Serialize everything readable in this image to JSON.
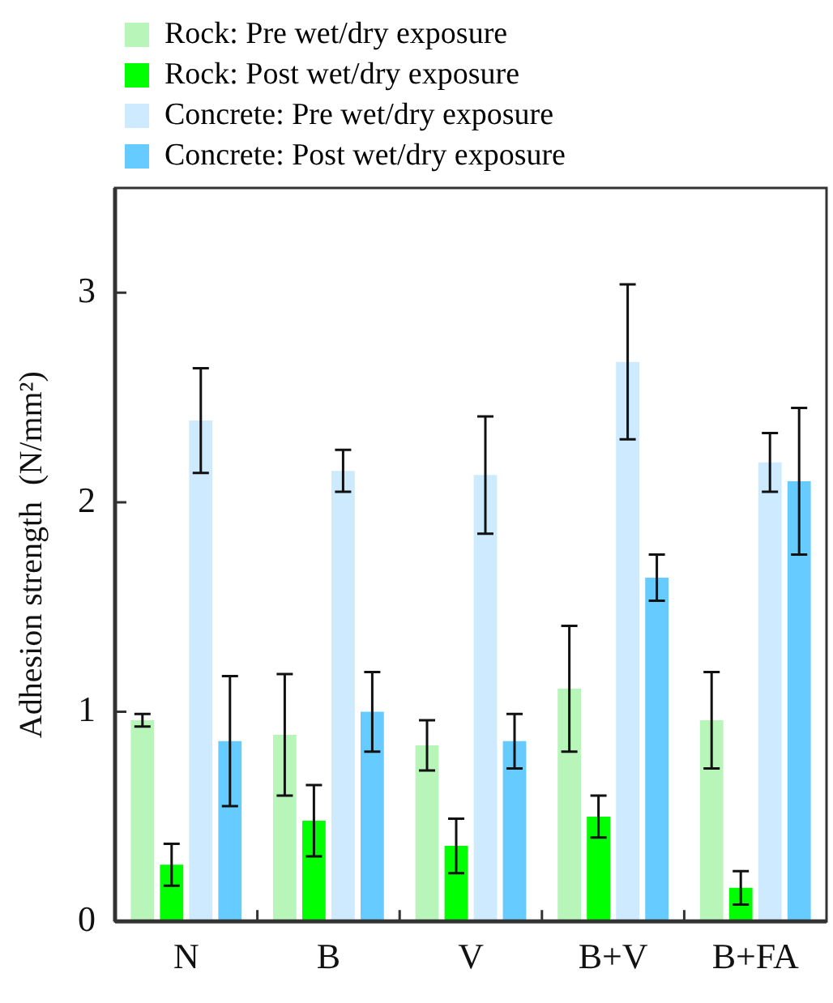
{
  "chart_data": {
    "type": "bar",
    "ylabel": "Adhesion strength  (N/mm²)",
    "categories": [
      "N",
      "B",
      "V",
      "B+V",
      "B+FA"
    ],
    "series": [
      {
        "name": "Rock: Pre wet/dry exposure",
        "color": "#b8f5b8",
        "values": [
          0.96,
          0.89,
          0.84,
          1.11,
          0.96
        ],
        "errors": [
          0.03,
          0.29,
          0.12,
          0.3,
          0.23
        ]
      },
      {
        "name": "Rock: Post wet/dry exposure",
        "color": "#00ff00",
        "values": [
          0.27,
          0.48,
          0.36,
          0.5,
          0.16
        ],
        "errors": [
          0.1,
          0.17,
          0.13,
          0.1,
          0.08
        ]
      },
      {
        "name": "Concrete: Pre wet/dry exposure",
        "color": "#cdeaff",
        "values": [
          2.39,
          2.15,
          2.13,
          2.67,
          2.19
        ],
        "errors": [
          0.25,
          0.1,
          0.28,
          0.37,
          0.14
        ]
      },
      {
        "name": "Concrete: Post wet/dry exposure",
        "color": "#66ccff",
        "values": [
          0.86,
          1.0,
          0.86,
          1.64,
          2.1
        ],
        "errors": [
          0.31,
          0.19,
          0.13,
          0.11,
          0.35
        ]
      }
    ],
    "ylim": [
      0,
      3.5
    ],
    "yticks": [
      0,
      1,
      2,
      3
    ],
    "grid": false,
    "legend": "top"
  }
}
